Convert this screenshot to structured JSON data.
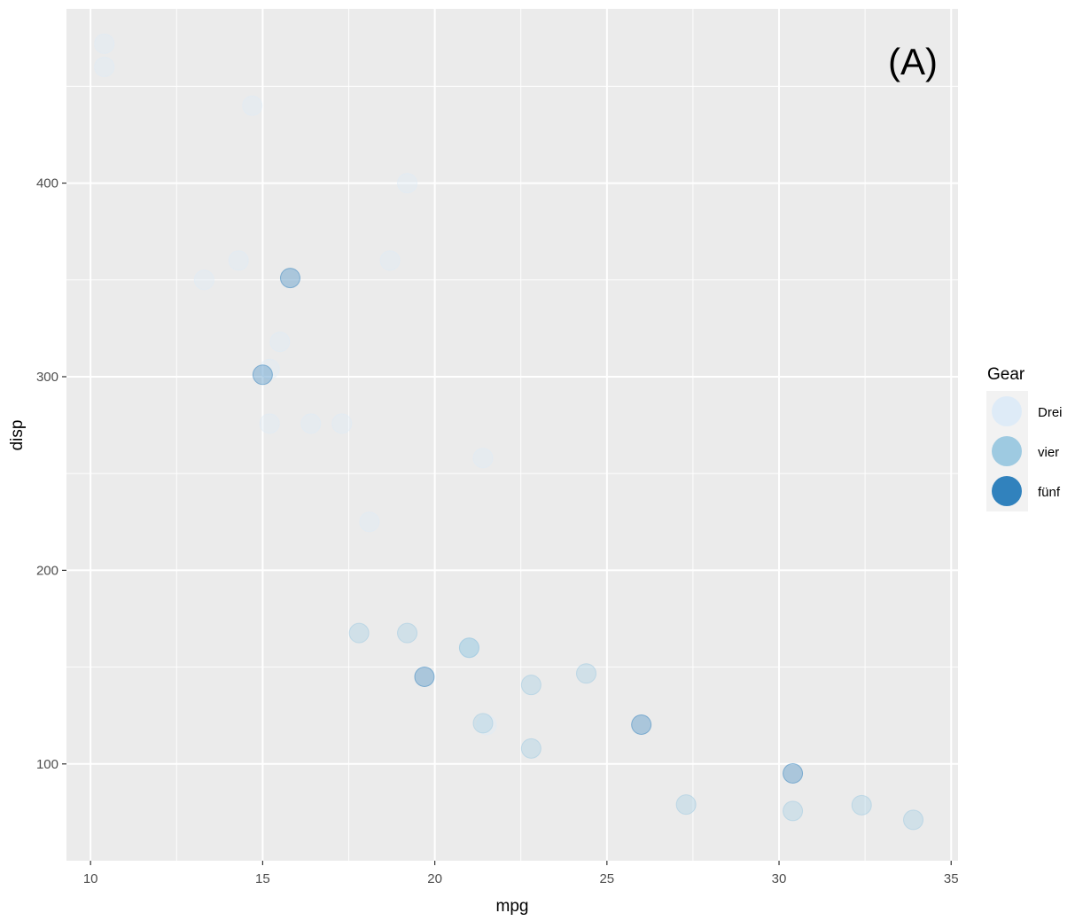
{
  "chart_data": {
    "type": "scatter",
    "panel_tag": "(A)",
    "xlabel": "mpg",
    "ylabel": "disp",
    "xlim": [
      9.3,
      35.2
    ],
    "ylim": [
      50,
      490
    ],
    "x_ticks": [
      10,
      15,
      20,
      25,
      30,
      35
    ],
    "y_ticks": [
      100,
      200,
      300,
      400
    ],
    "grid": true,
    "colors": {
      "panel_bg": "#ebebeb",
      "grid": "#ffffff"
    },
    "legend": {
      "title": "Gear",
      "position": "right",
      "entries": [
        {
          "label": "Drei",
          "color": "#deebf7"
        },
        {
          "label": "vier",
          "color": "#9ecae1"
        },
        {
          "label": "fünf",
          "color": "#3182bd"
        }
      ]
    },
    "series": [
      {
        "name": "Drei",
        "color": "#deebf7",
        "opacity": 0.35,
        "points": [
          [
            10.4,
            472
          ],
          [
            10.4,
            460
          ],
          [
            14.7,
            440
          ],
          [
            19.2,
            400
          ],
          [
            13.3,
            350
          ],
          [
            14.3,
            360
          ],
          [
            18.7,
            360
          ],
          [
            15.5,
            318
          ],
          [
            15.2,
            304
          ],
          [
            16.4,
            275.8
          ],
          [
            17.3,
            275.8
          ],
          [
            15.2,
            275.8
          ],
          [
            21.4,
            258
          ],
          [
            18.1,
            225
          ],
          [
            21.5,
            120.1
          ]
        ]
      },
      {
        "name": "vier",
        "color": "#9ecae1",
        "opacity": 0.35,
        "points": [
          [
            17.8,
            167.6
          ],
          [
            19.2,
            167.6
          ],
          [
            21,
            160
          ],
          [
            21,
            160
          ],
          [
            24.4,
            146.7
          ],
          [
            22.8,
            140.8
          ],
          [
            21.4,
            121
          ],
          [
            22.8,
            108
          ],
          [
            27.3,
            79
          ],
          [
            32.4,
            78.7
          ],
          [
            30.4,
            75.7
          ],
          [
            33.9,
            71.1
          ]
        ]
      },
      {
        "name": "fünf",
        "color": "#3182bd",
        "opacity": 0.35,
        "points": [
          [
            15.8,
            351
          ],
          [
            15,
            301
          ],
          [
            19.7,
            145
          ],
          [
            26,
            120.3
          ],
          [
            30.4,
            95.1
          ]
        ]
      }
    ]
  }
}
